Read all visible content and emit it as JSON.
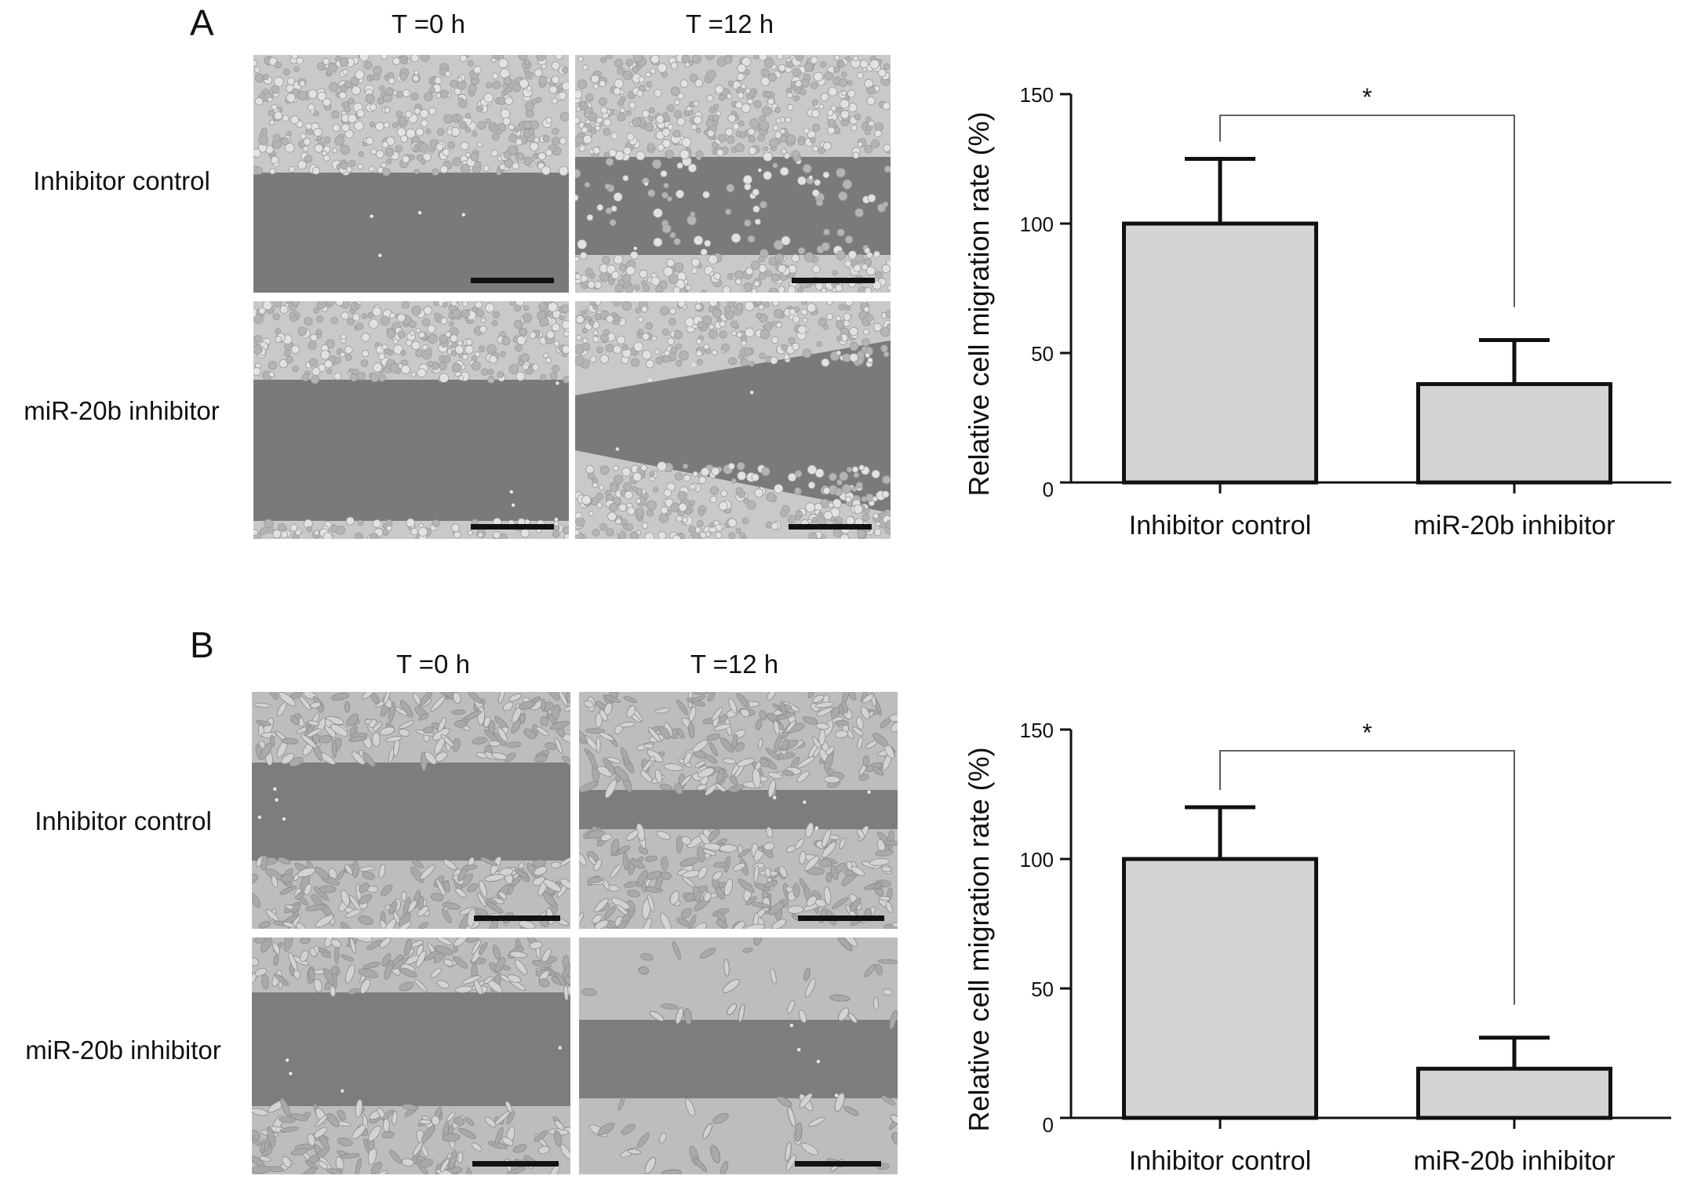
{
  "panels": [
    {
      "letter": "A",
      "col_headers": [
        "T =0 h",
        "T =12 h"
      ],
      "row_headers": [
        "Inhibitor control",
        "miR-20b inhibitor"
      ],
      "micrograph_style": "dense-round-cells",
      "colors": {
        "gap": "#7a7a7a",
        "cells": "#c9c9c9",
        "bar_fill": "#d4d4d4",
        "stroke": "#111111"
      }
    },
    {
      "letter": "B",
      "col_headers": [
        "T =0 h",
        "T =12 h"
      ],
      "row_headers": [
        "Inhibitor control",
        "miR-20b inhibitor"
      ],
      "micrograph_style": "spindle-cells",
      "colors": {
        "gap": "#7d7d7d",
        "cells": "#bdbdbd",
        "bar_fill": "#d4d4d4",
        "stroke": "#111111"
      }
    }
  ],
  "chart_data": [
    {
      "type": "bar",
      "panel": "A",
      "categories": [
        "Inhibitor control",
        "miR-20b inhibitor"
      ],
      "values": [
        100,
        38
      ],
      "error_upper": [
        125,
        55
      ],
      "ylabel": "Relative cell migration rate (%)",
      "ylim": [
        0,
        150
      ],
      "yticks": [
        0,
        50,
        100,
        150
      ],
      "significance": "*",
      "legend": "none",
      "grid": false
    },
    {
      "type": "bar",
      "panel": "B",
      "categories": [
        "Inhibitor control",
        "miR-20b inhibitor"
      ],
      "values": [
        100,
        19
      ],
      "error_upper": [
        120,
        31
      ],
      "ylabel": "Relative cell migration rate (%)",
      "ylim": [
        0,
        150
      ],
      "yticks": [
        0,
        50,
        100,
        150
      ],
      "significance": "*",
      "legend": "none",
      "grid": false
    }
  ]
}
